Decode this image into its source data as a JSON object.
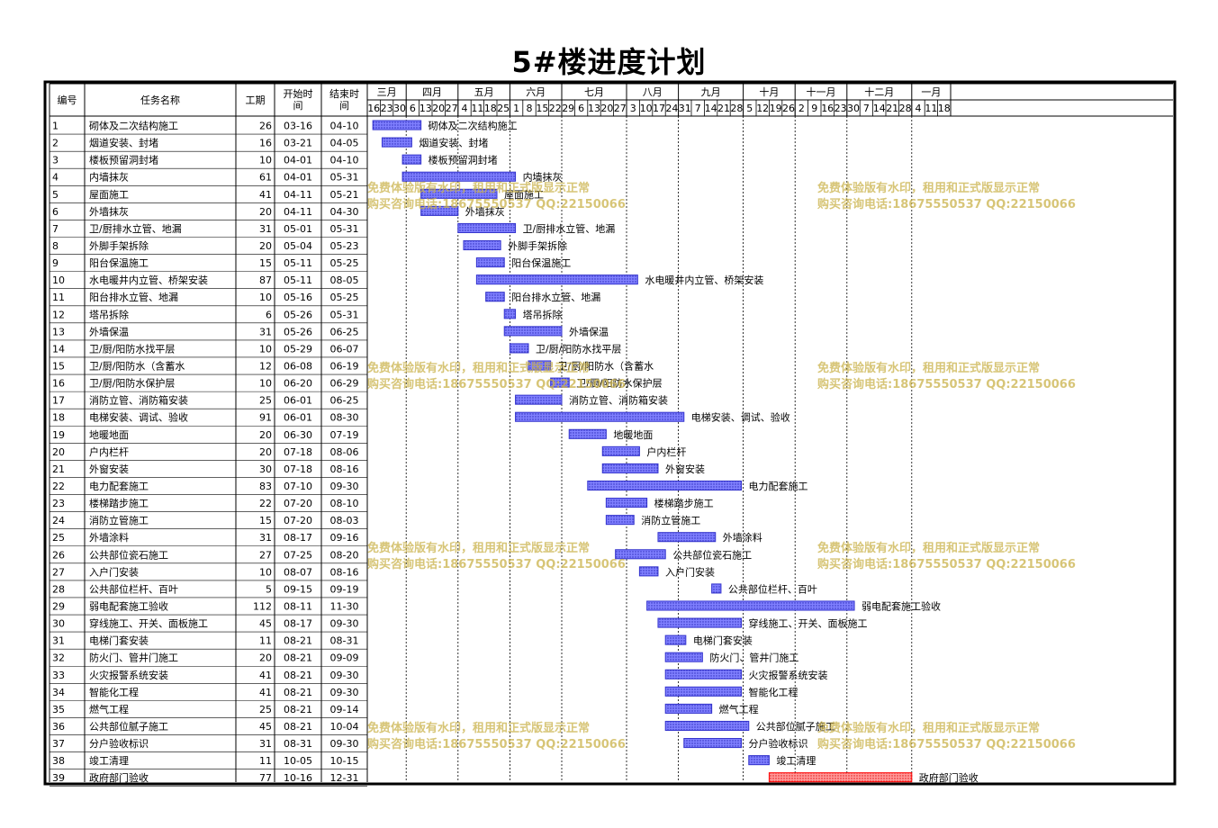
{
  "title": "5#楼进度计划",
  "headers": {
    "id": "编号",
    "name": "任务名称",
    "duration": "工期",
    "start_l1": "开始时",
    "start_l2": "间",
    "end_l1": "结束时",
    "end_l2": "间"
  },
  "months": [
    {
      "label": "三月",
      "days": [
        "16",
        "23",
        "30"
      ]
    },
    {
      "label": "四月",
      "days": [
        "6",
        "13",
        "20",
        "27"
      ]
    },
    {
      "label": "五月",
      "days": [
        "4",
        "11",
        "18",
        "25"
      ]
    },
    {
      "label": "六月",
      "days": [
        "1",
        "8",
        "15",
        "22"
      ]
    },
    {
      "label": "七月",
      "days": [
        "29",
        "6",
        "13",
        "20",
        "27"
      ]
    },
    {
      "label": "八月",
      "days": [
        "3",
        "10",
        "17",
        "24"
      ]
    },
    {
      "label": "九月",
      "days": [
        "31",
        "7",
        "14",
        "21",
        "28"
      ]
    },
    {
      "label": "十月",
      "days": [
        "5",
        "12",
        "19",
        "26"
      ]
    },
    {
      "label": "十一月",
      "days": [
        "2",
        "9",
        "16",
        "23"
      ]
    },
    {
      "label": "十二月",
      "days": [
        "30",
        "7",
        "14",
        "21",
        "28"
      ]
    },
    {
      "label": "一月",
      "days": [
        "4",
        "11",
        "18"
      ]
    }
  ],
  "watermark": {
    "line1": "免费体验版有水印，租用和正式版显示正常",
    "line2": "购买咨询电话:18675550537 QQ:22150066"
  },
  "colors": {
    "bar": "#3333cc",
    "bar_fill": "#8080ff",
    "highlight": "#ff0000",
    "highlight_fill": "#ff9999"
  },
  "chart_data": {
    "type": "gantt",
    "x_axis_start": "03-13",
    "tasks": [
      {
        "id": "1",
        "name": "砌体及二次结构施工",
        "duration": 26,
        "start": "03-16",
        "end": "04-10"
      },
      {
        "id": "2",
        "name": "烟道安装、封堵",
        "duration": 16,
        "start": "03-21",
        "end": "04-05"
      },
      {
        "id": "3",
        "name": "楼板预留洞封堵",
        "duration": 10,
        "start": "04-01",
        "end": "04-10"
      },
      {
        "id": "4",
        "name": "内墙抹灰",
        "duration": 61,
        "start": "04-01",
        "end": "05-31"
      },
      {
        "id": "5",
        "name": "屋面施工",
        "duration": 41,
        "start": "04-11",
        "end": "05-21"
      },
      {
        "id": "6",
        "name": "外墙抹灰",
        "duration": 20,
        "start": "04-11",
        "end": "04-30"
      },
      {
        "id": "7",
        "name": "卫/厨排水立管、地漏",
        "duration": 31,
        "start": "05-01",
        "end": "05-31"
      },
      {
        "id": "8",
        "name": "外脚手架拆除",
        "duration": 20,
        "start": "05-04",
        "end": "05-23"
      },
      {
        "id": "9",
        "name": "阳台保温施工",
        "duration": 15,
        "start": "05-11",
        "end": "05-25"
      },
      {
        "id": "10",
        "name": "水电暖井内立管、桥架安装",
        "duration": 87,
        "start": "05-11",
        "end": "08-05"
      },
      {
        "id": "11",
        "name": "阳台排水立管、地漏",
        "duration": 10,
        "start": "05-16",
        "end": "05-25"
      },
      {
        "id": "12",
        "name": "塔吊拆除",
        "duration": 6,
        "start": "05-26",
        "end": "05-31"
      },
      {
        "id": "13",
        "name": "外墙保温",
        "duration": 31,
        "start": "05-26",
        "end": "06-25"
      },
      {
        "id": "14",
        "name": "卫/厨/阳防水找平层",
        "duration": 10,
        "start": "05-29",
        "end": "06-07"
      },
      {
        "id": "15",
        "name": "卫/厨/阳防水（含蓄水",
        "duration": 12,
        "start": "06-08",
        "end": "06-19"
      },
      {
        "id": "16",
        "name": "卫/厨/阳防水保护层",
        "duration": 10,
        "start": "06-20",
        "end": "06-29"
      },
      {
        "id": "17",
        "name": "消防立管、消防箱安装",
        "duration": 25,
        "start": "06-01",
        "end": "06-25"
      },
      {
        "id": "18",
        "name": "电梯安装、调试、验收",
        "duration": 91,
        "start": "06-01",
        "end": "08-30"
      },
      {
        "id": "19",
        "name": "地暖地面",
        "duration": 20,
        "start": "06-30",
        "end": "07-19"
      },
      {
        "id": "20",
        "name": "户内栏杆",
        "duration": 20,
        "start": "07-18",
        "end": "08-06"
      },
      {
        "id": "21",
        "name": "外窗安装",
        "duration": 30,
        "start": "07-18",
        "end": "08-16"
      },
      {
        "id": "22",
        "name": "电力配套施工",
        "duration": 83,
        "start": "07-10",
        "end": "09-30"
      },
      {
        "id": "23",
        "name": "楼梯踏步施工",
        "duration": 22,
        "start": "07-20",
        "end": "08-10"
      },
      {
        "id": "24",
        "name": "消防立管施工",
        "duration": 15,
        "start": "07-20",
        "end": "08-03"
      },
      {
        "id": "25",
        "name": "外墙涂料",
        "duration": 31,
        "start": "08-17",
        "end": "09-16"
      },
      {
        "id": "26",
        "name": "公共部位瓷石施工",
        "duration": 27,
        "start": "07-25",
        "end": "08-20"
      },
      {
        "id": "27",
        "name": "入户门安装",
        "duration": 10,
        "start": "08-07",
        "end": "08-16"
      },
      {
        "id": "28",
        "name": "公共部位栏杆、百叶",
        "duration": 5,
        "start": "09-15",
        "end": "09-19"
      },
      {
        "id": "29",
        "name": "弱电配套施工验收",
        "duration": 112,
        "start": "08-11",
        "end": "11-30"
      },
      {
        "id": "30",
        "name": "穿线施工、开关、面板施工",
        "duration": 45,
        "start": "08-17",
        "end": "09-30"
      },
      {
        "id": "31",
        "name": "电梯门套安装",
        "duration": 11,
        "start": "08-21",
        "end": "08-31"
      },
      {
        "id": "32",
        "name": "防火门、管井门施工",
        "duration": 20,
        "start": "08-21",
        "end": "09-09"
      },
      {
        "id": "33",
        "name": "火灾报警系统安装",
        "duration": 41,
        "start": "08-21",
        "end": "09-30"
      },
      {
        "id": "34",
        "name": "智能化工程",
        "duration": 41,
        "start": "08-21",
        "end": "09-30"
      },
      {
        "id": "35",
        "name": "燃气工程",
        "duration": 25,
        "start": "08-21",
        "end": "09-14"
      },
      {
        "id": "36",
        "name": "公共部位腻子施工",
        "duration": 45,
        "start": "08-21",
        "end": "10-04"
      },
      {
        "id": "37",
        "name": "分户验收标识",
        "duration": 31,
        "start": "08-31",
        "end": "09-30"
      },
      {
        "id": "38",
        "name": "竣工清理",
        "duration": 11,
        "start": "10-05",
        "end": "10-15"
      },
      {
        "id": "39",
        "name": "政府部门验收",
        "duration": 77,
        "start": "10-16",
        "end": "12-31",
        "highlight": true
      }
    ]
  }
}
